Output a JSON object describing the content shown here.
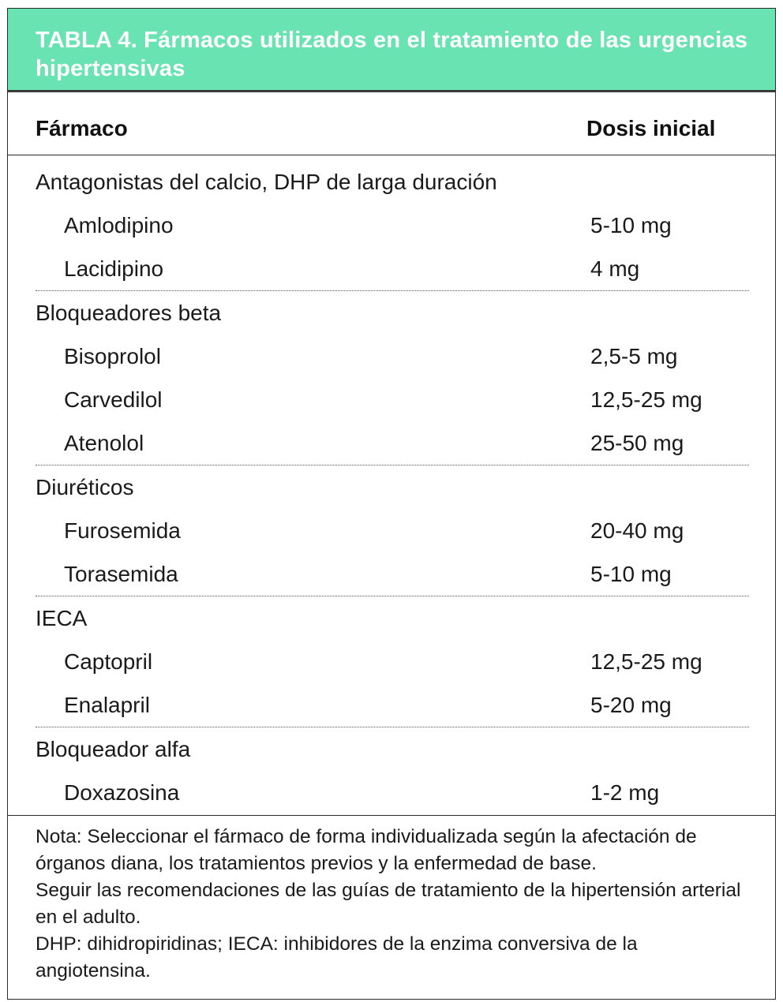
{
  "table": {
    "title": "TABLA 4. Fármacos utilizados en el tratamiento de las urgencias hipertensivas",
    "header": {
      "drug": "Fármaco",
      "dose": "Dosis inicial"
    },
    "groups": [
      {
        "category": "Antagonistas del calcio, DHP de larga duración",
        "items": [
          {
            "drug": "Amlodipino",
            "dose": "5-10 mg"
          },
          {
            "drug": "Lacidipino",
            "dose": "4 mg"
          }
        ]
      },
      {
        "category": "Bloqueadores beta",
        "items": [
          {
            "drug": "Bisoprolol",
            "dose": "2,5-5 mg"
          },
          {
            "drug": "Carvedilol",
            "dose": "12,5-25 mg"
          },
          {
            "drug": "Atenolol",
            "dose": "25-50 mg"
          }
        ]
      },
      {
        "category": "Diuréticos",
        "items": [
          {
            "drug": "Furosemida",
            "dose": "20-40 mg"
          },
          {
            "drug": "Torasemida",
            "dose": "5-10 mg"
          }
        ]
      },
      {
        "category": "IECA",
        "items": [
          {
            "drug": "Captopril",
            "dose": "12,5-25 mg"
          },
          {
            "drug": "Enalapril",
            "dose": "5-20 mg"
          }
        ]
      },
      {
        "category": "Bloqueador alfa",
        "items": [
          {
            "drug": "Doxazosina",
            "dose": "1-2 mg"
          }
        ]
      }
    ],
    "notes": [
      "Nota: Seleccionar el fármaco de forma individualizada según la afectación de órganos diana, los tratamientos previos y la enfermedad de base.",
      "Seguir las recomendaciones de las guías de tratamiento de la hipertensión arterial en el adulto.",
      "DHP: dihidropiridinas; IECA: inhibidores de la enzima conversiva de la angiotensina."
    ],
    "colors": {
      "title_background": "#69e3b2",
      "title_text": "#ffffff"
    }
  }
}
